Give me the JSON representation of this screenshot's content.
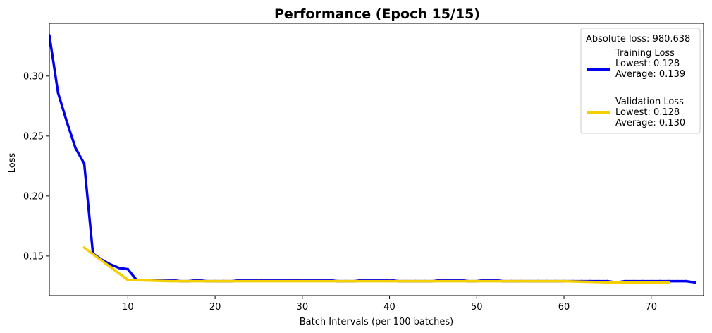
{
  "chart_data": {
    "type": "line",
    "title": "Performance (Epoch 15/15)",
    "xlabel": "Batch Intervals (per 100 batches)",
    "ylabel": "Loss",
    "xlim": [
      1,
      76
    ],
    "ylim": [
      0.117,
      0.344
    ],
    "xticks": [
      10,
      20,
      30,
      40,
      50,
      60,
      70
    ],
    "yticks": [
      0.15,
      0.2,
      0.25,
      0.3
    ],
    "ytick_labels": [
      "0.15",
      "0.20",
      "0.25",
      "0.30"
    ],
    "grid": false,
    "legend": {
      "placement": "top-right",
      "header": "Absolute loss: 980.638",
      "entries": [
        {
          "lines": [
            "Training Loss",
            "Lowest: 0.128",
            "Average: 0.139"
          ],
          "color": "#0000ee"
        },
        {
          "lines": [
            "Validation Loss",
            "Lowest: 0.128",
            "Average: 0.130"
          ],
          "color": "#f5d000"
        }
      ]
    },
    "series": [
      {
        "name": "Training Loss",
        "color": "#0000ee",
        "x": [
          1,
          2,
          3,
          4,
          5,
          6,
          7,
          8,
          9,
          10,
          11,
          12,
          13,
          14,
          15,
          16,
          17,
          18,
          19,
          20,
          21,
          22,
          23,
          24,
          25,
          26,
          27,
          28,
          29,
          30,
          31,
          32,
          33,
          34,
          35,
          36,
          37,
          38,
          39,
          40,
          41,
          42,
          43,
          44,
          45,
          46,
          47,
          48,
          49,
          50,
          51,
          52,
          53,
          54,
          55,
          56,
          57,
          58,
          59,
          60,
          61,
          62,
          63,
          64,
          65,
          66,
          67,
          68,
          69,
          70,
          71,
          72,
          73,
          74,
          75
        ],
        "y": [
          0.334,
          0.286,
          0.262,
          0.24,
          0.227,
          0.152,
          0.147,
          0.143,
          0.14,
          0.139,
          0.13,
          0.13,
          0.13,
          0.13,
          0.13,
          0.129,
          0.129,
          0.13,
          0.129,
          0.129,
          0.129,
          0.129,
          0.13,
          0.13,
          0.13,
          0.13,
          0.13,
          0.13,
          0.13,
          0.13,
          0.13,
          0.13,
          0.13,
          0.129,
          0.129,
          0.129,
          0.13,
          0.13,
          0.13,
          0.13,
          0.129,
          0.129,
          0.129,
          0.129,
          0.129,
          0.13,
          0.13,
          0.13,
          0.129,
          0.129,
          0.13,
          0.13,
          0.129,
          0.129,
          0.129,
          0.129,
          0.129,
          0.129,
          0.129,
          0.129,
          0.129,
          0.129,
          0.129,
          0.129,
          0.129,
          0.128,
          0.129,
          0.129,
          0.129,
          0.129,
          0.129,
          0.129,
          0.129,
          0.129,
          0.128
        ]
      },
      {
        "name": "Validation Loss",
        "color": "#f5d000",
        "x": [
          5,
          10,
          15,
          20,
          25,
          30,
          35,
          40,
          45,
          50,
          55,
          60,
          65,
          70,
          72
        ],
        "y": [
          0.157,
          0.13,
          0.129,
          0.129,
          0.129,
          0.129,
          0.129,
          0.129,
          0.129,
          0.129,
          0.129,
          0.129,
          0.128,
          0.128,
          0.128
        ]
      }
    ]
  }
}
